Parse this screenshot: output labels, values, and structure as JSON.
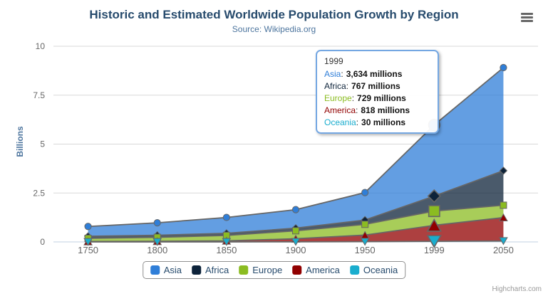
{
  "title": "Historic and Estimated Worldwide Population Growth by Region",
  "subtitle": "Source: Wikipedia.org",
  "credits": "Highcharts.com",
  "context_menu_icon": "hamburger-icon",
  "chart_data": {
    "type": "area",
    "stacking": "normal",
    "categories": [
      "1750",
      "1800",
      "1850",
      "1900",
      "1950",
      "1999",
      "2050"
    ],
    "series": [
      {
        "name": "Asia",
        "color": "#2f7ed8",
        "marker": "circle",
        "values": [
          502,
          635,
          809,
          947,
          1402,
          3634,
          5268
        ]
      },
      {
        "name": "Africa",
        "color": "#0d233a",
        "marker": "diamond",
        "values": [
          106,
          107,
          111,
          133,
          221,
          767,
          1766
        ]
      },
      {
        "name": "Europe",
        "color": "#8bbc21",
        "marker": "square",
        "values": [
          163,
          203,
          276,
          408,
          547,
          729,
          628
        ]
      },
      {
        "name": "America",
        "color": "#910000",
        "marker": "triangle",
        "values": [
          18,
          31,
          54,
          156,
          339,
          818,
          1201
        ]
      },
      {
        "name": "Oceania",
        "color": "#1aadce",
        "marker": "triangle-down",
        "values": [
          2,
          2,
          2,
          6,
          13,
          30,
          46
        ]
      }
    ],
    "value_unit": "millions",
    "xlabel": "",
    "ylabel": "Billions",
    "yticks": [
      0,
      2.5,
      5,
      7.5,
      10
    ],
    "ylim": [
      0,
      10
    ],
    "grid_on": true,
    "grid_color": "#d8d8d8",
    "axis_line_color": "#c0d0e0",
    "axis_label_color": "#666666",
    "line_color": "#666666",
    "fill_opacity": 0.75,
    "hover_category_index": 5,
    "legend_position": "bottom"
  },
  "tooltip": {
    "header": "1999",
    "separator": ":",
    "rows": [
      {
        "name": "Asia",
        "value": "3,634 millions"
      },
      {
        "name": "Africa",
        "value": "767 millions"
      },
      {
        "name": "Europe",
        "value": "729 millions"
      },
      {
        "name": "America",
        "value": "818 millions"
      },
      {
        "name": "Oceania",
        "value": "30 millions"
      }
    ]
  }
}
